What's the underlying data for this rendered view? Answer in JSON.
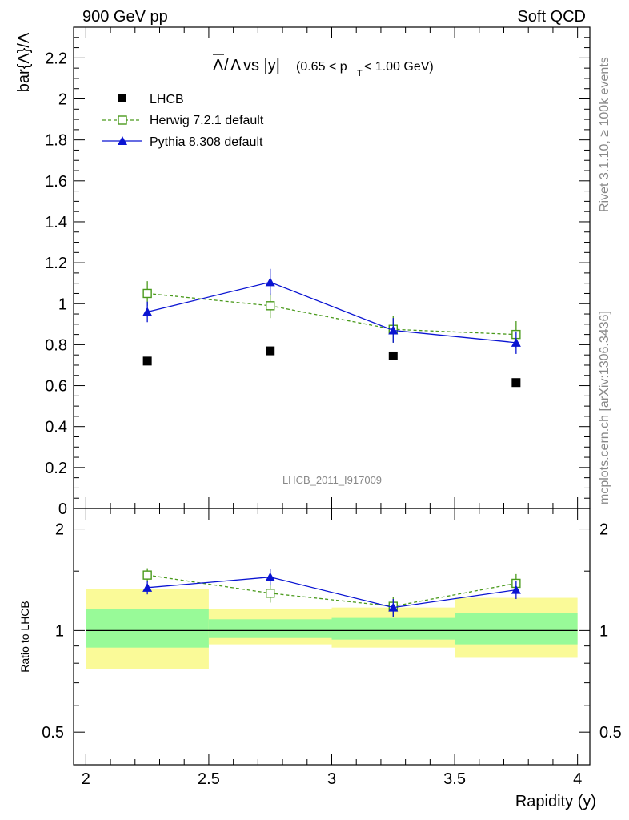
{
  "header": {
    "left": "900 GeV pp",
    "right": "Soft QCD"
  },
  "side_labels": {
    "rivet": "Rivet 3.1.10, ≥ 100k events",
    "mcplots": "mcplots.cern.ch [arXiv:1306.3436]"
  },
  "chart_data": [
    {
      "type": "scatter",
      "panel": "main",
      "title": "Λ̄/Λ vs |y|(0.65 < pT < 1.00 GeV)",
      "title_parts": {
        "lambda": "Λ",
        "vs": " vs |y|",
        "cond_open": "(0.65 < p",
        "sub": "T",
        "cond_close": " < 1.00 GeV)"
      },
      "ylabel": "bar{Λ}/Λ",
      "watermark": "LHCB_2011_I917009",
      "xlim": [
        1.95,
        4.05
      ],
      "ylim": [
        0,
        2.35
      ],
      "yticks": [
        0,
        0.2,
        0.4,
        0.6,
        0.8,
        1,
        1.2,
        1.4,
        1.6,
        1.8,
        2,
        2.2
      ],
      "ytick_labels": [
        "0",
        "0.2",
        "0.4",
        "0.6",
        "0.8",
        "1",
        "1.2",
        "1.4",
        "1.6",
        "1.8",
        "2",
        "2.2"
      ],
      "legend_position": "top-left",
      "series": [
        {
          "name": "LHCB",
          "style": "square-filled",
          "color": "#000000",
          "x": [
            2.25,
            2.75,
            3.25,
            3.75
          ],
          "y": [
            0.72,
            0.77,
            0.745,
            0.615
          ],
          "yerr": [
            0.008,
            0.008,
            0.008,
            0.008
          ]
        },
        {
          "name": "Herwig 7.2.1 default",
          "style": "square-open-dashed",
          "color": "#4a9a1c",
          "x": [
            2.25,
            2.75,
            3.25,
            3.75
          ],
          "y": [
            1.05,
            0.99,
            0.875,
            0.85
          ],
          "yerr": [
            0.06,
            0.06,
            0.065,
            0.065
          ]
        },
        {
          "name": "Pythia 8.308 default",
          "style": "triangle-filled-solid",
          "color": "#0a14d2",
          "x": [
            2.25,
            2.75,
            3.25,
            3.75
          ],
          "y": [
            0.96,
            1.105,
            0.87,
            0.81
          ],
          "yerr": [
            0.05,
            0.065,
            0.06,
            0.055
          ]
        }
      ]
    },
    {
      "type": "scatter",
      "panel": "ratio",
      "ylabel": "Ratio to LHCB",
      "xlabel": "Rapidity (y)",
      "xlim": [
        1.95,
        4.05
      ],
      "ylim": [
        0.4,
        2.3
      ],
      "y_scale": "log",
      "xticks": [
        2,
        2.5,
        3,
        3.5,
        4
      ],
      "xtick_labels": [
        "2",
        "2.5",
        "3",
        "3.5",
        "4"
      ],
      "yticks": [
        0.5,
        1,
        2
      ],
      "ytick_labels": [
        "0.5",
        "1",
        "2"
      ],
      "bands": [
        {
          "x": [
            2.0,
            2.5
          ],
          "inner": [
            0.89,
            1.16
          ],
          "outer": [
            0.77,
            1.33
          ]
        },
        {
          "x": [
            2.5,
            3.0
          ],
          "inner": [
            0.95,
            1.08
          ],
          "outer": [
            0.91,
            1.16
          ]
        },
        {
          "x": [
            3.0,
            3.5
          ],
          "inner": [
            0.94,
            1.09
          ],
          "outer": [
            0.89,
            1.17
          ]
        },
        {
          "x": [
            3.5,
            4.0
          ],
          "inner": [
            0.91,
            1.13
          ],
          "outer": [
            0.83,
            1.25
          ]
        }
      ],
      "band_colors": {
        "inner": "#98fa98",
        "outer": "#fafa98"
      },
      "series": [
        {
          "name": "Herwig 7.2.1 default",
          "color": "#4a9a1c",
          "x": [
            2.25,
            2.75,
            3.25,
            3.75
          ],
          "y": [
            1.46,
            1.29,
            1.18,
            1.38
          ],
          "yerr": [
            0.07,
            0.08,
            0.08,
            0.09
          ]
        },
        {
          "name": "Pythia 8.308 default",
          "color": "#0a14d2",
          "x": [
            2.25,
            2.75,
            3.25,
            3.75
          ],
          "y": [
            1.34,
            1.44,
            1.17,
            1.32
          ],
          "yerr": [
            0.06,
            0.08,
            0.07,
            0.08
          ]
        }
      ]
    }
  ]
}
